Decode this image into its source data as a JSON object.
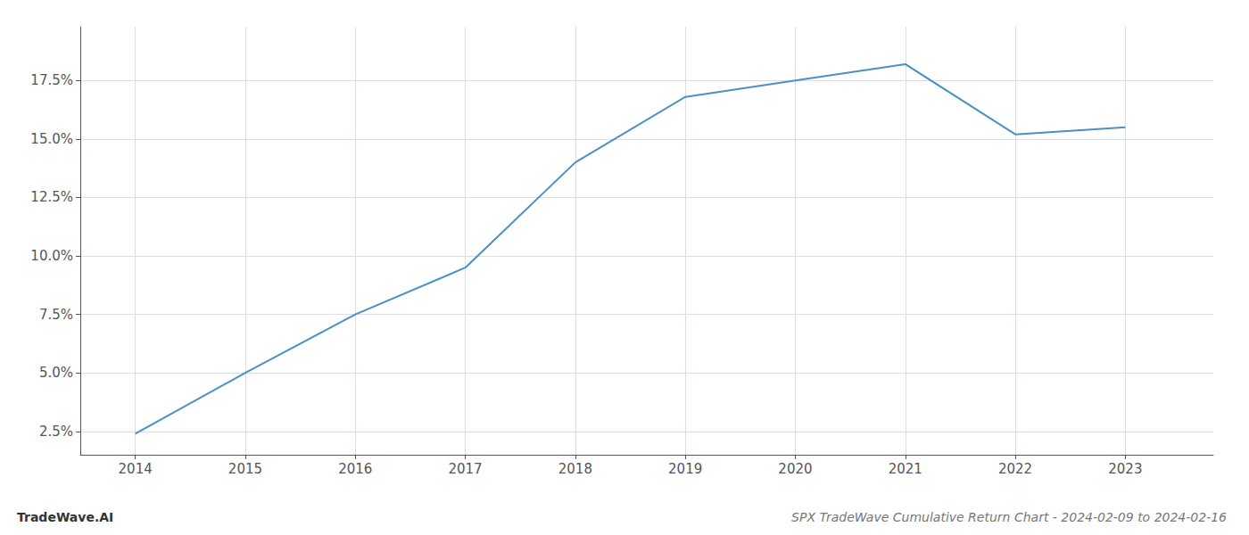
{
  "chart_data": {
    "type": "line",
    "title": "SPX TradeWave Cumulative Return Chart - 2024-02-09 to 2024-02-16",
    "annotations": [
      "TradeWave.AI"
    ],
    "x": [
      2014,
      2015,
      2016,
      2017,
      2018,
      2019,
      2020,
      2021,
      2022,
      2023
    ],
    "values": [
      2.4,
      5.0,
      7.5,
      9.5,
      14.0,
      16.8,
      17.5,
      18.2,
      15.2,
      15.5
    ],
    "color": "#4a90c4",
    "xlim": [
      2013.5,
      2023.8
    ],
    "xticks": [
      2014,
      2015,
      2016,
      2017,
      2018,
      2019,
      2020,
      2021,
      2022,
      2023
    ],
    "ylim": [
      1.5,
      19.8
    ],
    "yticks": [
      {
        "value": 2.5,
        "label": "2.5%"
      },
      {
        "value": 5.0,
        "label": "5.0%"
      },
      {
        "value": 7.5,
        "label": "7.5%"
      },
      {
        "value": 10.0,
        "label": "10.0%"
      },
      {
        "value": 12.5,
        "label": "12.5%"
      },
      {
        "value": 15.0,
        "label": "15.0%"
      },
      {
        "value": 17.5,
        "label": "17.5%"
      }
    ],
    "grid": true
  }
}
